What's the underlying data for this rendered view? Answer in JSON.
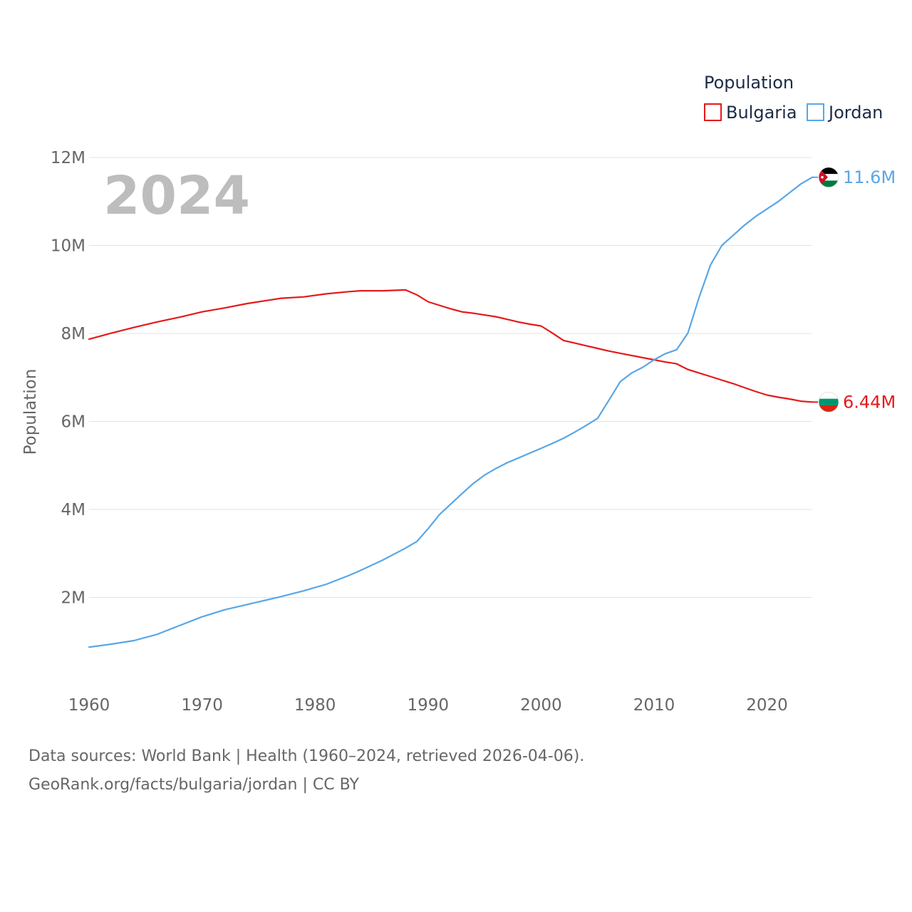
{
  "chart_data": {
    "type": "line",
    "year_label": "2024",
    "legend": {
      "title": "Population",
      "position": "top-right"
    },
    "ylabel": "Population",
    "xlabel": "",
    "xlim": [
      1960,
      2024
    ],
    "ylim": [
      0,
      12000000
    ],
    "x_ticks": [
      1960,
      1970,
      1980,
      1990,
      2000,
      2010,
      2020
    ],
    "y_ticks": [
      {
        "value": 2000000,
        "label": "2M"
      },
      {
        "value": 4000000,
        "label": "4M"
      },
      {
        "value": 6000000,
        "label": "6M"
      },
      {
        "value": 8000000,
        "label": "8M"
      },
      {
        "value": 10000000,
        "label": "10M"
      },
      {
        "value": 12000000,
        "label": "12M"
      }
    ],
    "grid": true,
    "x": [
      1960,
      1962,
      1964,
      1966,
      1968,
      1970,
      1972,
      1974,
      1976,
      1977,
      1979,
      1981,
      1983,
      1984,
      1986,
      1988,
      1989,
      1990,
      1991,
      1992,
      1993,
      1994,
      1995,
      1996,
      1997,
      1998,
      1999,
      2000,
      2001,
      2002,
      2003,
      2004,
      2005,
      2006,
      2007,
      2008,
      2009,
      2010,
      2011,
      2012,
      2013,
      2014,
      2015,
      2016,
      2017,
      2018,
      2019,
      2020,
      2021,
      2022,
      2023,
      2024
    ],
    "series": [
      {
        "name": "Bulgaria",
        "color": "#e41a1c",
        "end_label": "6.44M",
        "flag_colors": [
          "#ffffff",
          "#00966e",
          "#d62612"
        ],
        "values": [
          7870000,
          8010000,
          8140000,
          8260000,
          8370000,
          8490000,
          8580000,
          8680000,
          8760000,
          8800000,
          8830000,
          8900000,
          8950000,
          8970000,
          8970000,
          8990000,
          8880000,
          8720000,
          8640000,
          8560000,
          8490000,
          8460000,
          8420000,
          8380000,
          8320000,
          8260000,
          8210000,
          8170000,
          8010000,
          7840000,
          7780000,
          7720000,
          7660000,
          7600000,
          7550000,
          7500000,
          7450000,
          7400000,
          7350000,
          7310000,
          7180000,
          7100000,
          7020000,
          6940000,
          6860000,
          6770000,
          6680000,
          6600000,
          6550000,
          6510000,
          6460000,
          6440000
        ]
      },
      {
        "name": "Jordan",
        "color": "#5aa6e6",
        "end_label": "11.6M",
        "flag_colors": [
          "#000000",
          "#ffffff",
          "#007a3d",
          "#ce1126"
        ],
        "values": [
          870000,
          940000,
          1020000,
          1160000,
          1360000,
          1560000,
          1720000,
          1840000,
          1960000,
          2020000,
          2150000,
          2300000,
          2500000,
          2610000,
          2850000,
          3120000,
          3270000,
          3560000,
          3880000,
          4120000,
          4360000,
          4590000,
          4780000,
          4930000,
          5060000,
          5170000,
          5280000,
          5390000,
          5500000,
          5620000,
          5760000,
          5910000,
          6070000,
          6480000,
          6900000,
          7100000,
          7230000,
          7400000,
          7540000,
          7630000,
          8010000,
          8830000,
          9560000,
          10000000,
          10230000,
          10460000,
          10660000,
          10830000,
          11000000,
          11200000,
          11400000,
          11550000
        ]
      }
    ],
    "source_line1": "Data sources: World Bank | Health (1960–2024, retrieved 2026-04-06).",
    "source_line2": "GeoRank.org/facts/bulgaria/jordan | CC BY"
  }
}
